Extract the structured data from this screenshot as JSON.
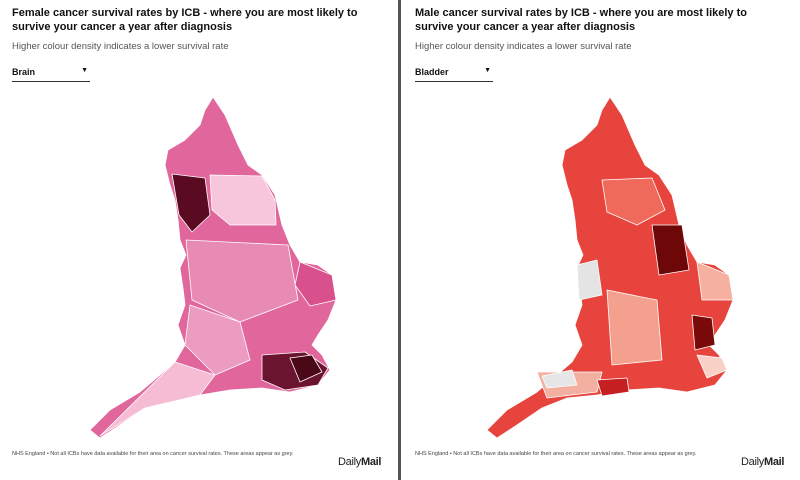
{
  "panels": [
    {
      "title": "Female cancer survival rates by ICB - where you are most likely to survive your cancer a year after diagnosis",
      "subtitle": "Higher colour density indicates a lower survival rate",
      "dropdown": "Brain",
      "footnote": "NHS England • Not all ICBs have data available for their area on cancer survival rates. These areas appear as grey.",
      "logo_daily": "Daily",
      "logo_mail": "Mail"
    },
    {
      "title": "Male cancer survival rates by ICB - where you are most likely to survive your cancer a year after diagnosis",
      "subtitle": "Higher colour density indicates a lower survival rate",
      "dropdown": "Bladder",
      "footnote": "NHS England • Not all ICBs have data available for their area on cancer survival rates. These areas appear as grey.",
      "logo_daily": "Daily",
      "logo_mail": "Mail"
    }
  ]
}
